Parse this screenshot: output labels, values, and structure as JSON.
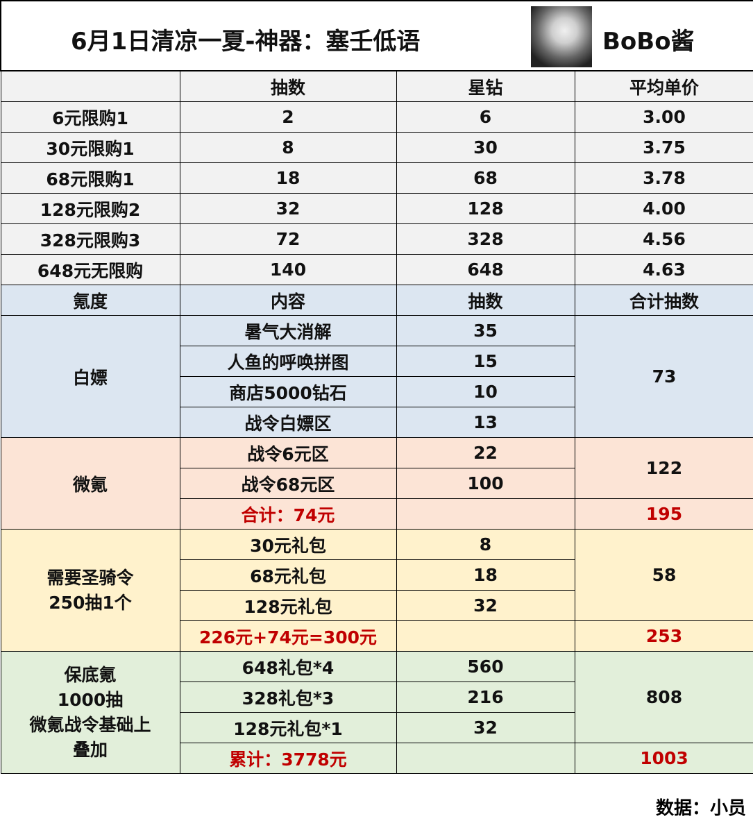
{
  "title": "6月1日清凉一夏-神器：塞壬低语",
  "author": "BoBo酱",
  "price_table": {
    "headers": [
      "",
      "抽数",
      "星钻",
      "平均单价"
    ],
    "rows": [
      [
        "6元限购1",
        "2",
        "6",
        "3.00"
      ],
      [
        "30元限购1",
        "8",
        "30",
        "3.75"
      ],
      [
        "68元限购1",
        "18",
        "68",
        "3.78"
      ],
      [
        "128元限购2",
        "32",
        "128",
        "4.00"
      ],
      [
        "328元限购3",
        "72",
        "328",
        "4.56"
      ],
      [
        "648元无限购",
        "140",
        "648",
        "4.63"
      ]
    ]
  },
  "tier_table": {
    "headers": [
      "氪度",
      "内容",
      "抽数",
      "合计抽数"
    ],
    "free": {
      "label": "白嫖",
      "items": [
        [
          "暑气大消解",
          "35"
        ],
        [
          "人鱼的呼唤拼图",
          "15"
        ],
        [
          "商店5000钻石",
          "10"
        ],
        [
          "战令白嫖区",
          "13"
        ]
      ],
      "total": "73"
    },
    "light": {
      "label": "微氪",
      "items": [
        [
          "战令6元区",
          "22"
        ],
        [
          "战令68元区",
          "100"
        ]
      ],
      "subtotal": "122",
      "cost": "合计：74元",
      "total": "195"
    },
    "paladin": {
      "label_line1": "需要圣骑令",
      "label_line2": "250抽1个",
      "items": [
        [
          "30元礼包",
          "8"
        ],
        [
          "68元礼包",
          "18"
        ],
        [
          "128元礼包",
          "32"
        ]
      ],
      "subtotal": "58",
      "cost": "226元+74元=300元",
      "total": "253"
    },
    "guarantee": {
      "label_lines": [
        "保底氪",
        "1000抽",
        "微氪战令基础上",
        "叠加"
      ],
      "items": [
        [
          "648礼包*4",
          "560"
        ],
        [
          "328礼包*3",
          "216"
        ],
        [
          "128元礼包*1",
          "32"
        ]
      ],
      "subtotal": "808",
      "cost": "累计：3778元",
      "total": "1003"
    }
  },
  "colors": {
    "grey": "#f2f2f2",
    "blue": "#dce6f1",
    "pink": "#fce4d6",
    "yellow": "#fff2cc",
    "green": "#e2efda",
    "red": "#c00000"
  },
  "footer": "数据：小员"
}
